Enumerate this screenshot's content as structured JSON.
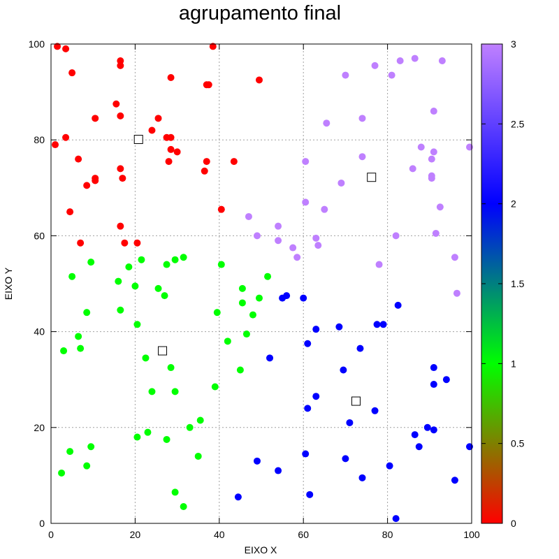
{
  "chart_data": {
    "type": "scatter",
    "title": "agrupamento final",
    "xlabel": "EIXO X",
    "ylabel": "EIXO Y",
    "xlim": [
      0,
      100
    ],
    "ylim": [
      0,
      100
    ],
    "x_ticks": [
      "0",
      "20",
      "40",
      "60",
      "80",
      "100"
    ],
    "y_ticks": [
      "0",
      "20",
      "40",
      "60",
      "80",
      "100"
    ],
    "grid": true,
    "colorbar": {
      "range": [
        0,
        3
      ],
      "ticks": [
        "0",
        "0.5",
        "1",
        "1.5",
        "2",
        "2.5",
        "3"
      ],
      "colors": [
        "#ff0000",
        "#00ff00",
        "#0000ff",
        "#bf80ff"
      ]
    },
    "series": [
      {
        "cluster": 0,
        "color": "#ff0000",
        "points": [
          [
            1.5,
            99.5
          ],
          [
            3.5,
            99
          ],
          [
            5,
            94
          ],
          [
            16.5,
            96.5
          ],
          [
            16.5,
            95.5
          ],
          [
            38.5,
            99.5
          ],
          [
            49.5,
            92.5
          ],
          [
            28.5,
            93
          ],
          [
            37,
            91.5
          ],
          [
            37.5,
            91.5
          ],
          [
            15.5,
            87.5
          ],
          [
            16.5,
            85
          ],
          [
            10.5,
            84.5
          ],
          [
            25.5,
            84.5
          ],
          [
            24,
            82
          ],
          [
            27.5,
            80.5
          ],
          [
            28.5,
            80.5
          ],
          [
            3.5,
            80.5
          ],
          [
            1,
            79
          ],
          [
            28.5,
            78
          ],
          [
            30,
            77.5
          ],
          [
            6.5,
            76
          ],
          [
            28,
            75.5
          ],
          [
            37,
            75.5
          ],
          [
            43.5,
            75.5
          ],
          [
            16.5,
            74
          ],
          [
            36.5,
            73.5
          ],
          [
            10.5,
            72
          ],
          [
            10.5,
            71.5
          ],
          [
            17,
            72
          ],
          [
            8.5,
            70.5
          ],
          [
            4.5,
            65
          ],
          [
            40.5,
            65.5
          ],
          [
            16.5,
            62
          ],
          [
            7,
            58.5
          ],
          [
            17.5,
            58.5
          ],
          [
            20.5,
            58.5
          ]
        ]
      },
      {
        "cluster": 1,
        "color": "#00ff00",
        "points": [
          [
            9.5,
            54.5
          ],
          [
            18.5,
            53.5
          ],
          [
            21.5,
            55
          ],
          [
            27.5,
            54
          ],
          [
            29.5,
            55
          ],
          [
            31.5,
            55.5
          ],
          [
            40.5,
            54
          ],
          [
            5,
            51.5
          ],
          [
            16,
            50.5
          ],
          [
            20,
            49.5
          ],
          [
            25.5,
            49
          ],
          [
            27,
            47.5
          ],
          [
            45.5,
            49
          ],
          [
            51.5,
            51.5
          ],
          [
            45.5,
            46
          ],
          [
            49.5,
            47
          ],
          [
            8.5,
            44
          ],
          [
            16.5,
            44.5
          ],
          [
            39.5,
            44
          ],
          [
            48,
            43.5
          ],
          [
            20.5,
            41.5
          ],
          [
            6.5,
            39
          ],
          [
            42,
            38
          ],
          [
            46.5,
            39.5
          ],
          [
            3,
            36
          ],
          [
            7,
            36.5
          ],
          [
            22.5,
            34.5
          ],
          [
            28.5,
            32.5
          ],
          [
            45,
            32
          ],
          [
            24,
            27.5
          ],
          [
            29.5,
            27.5
          ],
          [
            39,
            28.5
          ],
          [
            35.5,
            21.5
          ],
          [
            33,
            20
          ],
          [
            23,
            19
          ],
          [
            20.5,
            18
          ],
          [
            27.5,
            17.5
          ],
          [
            9.5,
            16
          ],
          [
            4.5,
            15
          ],
          [
            35,
            14
          ],
          [
            8.5,
            12
          ],
          [
            2.5,
            10.5
          ],
          [
            29.5,
            6.5
          ],
          [
            31.5,
            3.5
          ]
        ]
      },
      {
        "cluster": 2,
        "color": "#0000ff",
        "points": [
          [
            55,
            47
          ],
          [
            56,
            47.5
          ],
          [
            60,
            47
          ],
          [
            82.5,
            45.5
          ],
          [
            77.5,
            41.5
          ],
          [
            79,
            41.5
          ],
          [
            68.5,
            41
          ],
          [
            63,
            40.5
          ],
          [
            61,
            37.5
          ],
          [
            73.5,
            36.5
          ],
          [
            52,
            34.5
          ],
          [
            91,
            32.5
          ],
          [
            69.5,
            32
          ],
          [
            94,
            30
          ],
          [
            91,
            29
          ],
          [
            63,
            26.5
          ],
          [
            61,
            24
          ],
          [
            77,
            23.5
          ],
          [
            71,
            21
          ],
          [
            89.5,
            20
          ],
          [
            91,
            19.5
          ],
          [
            86.5,
            18.5
          ],
          [
            87.5,
            16
          ],
          [
            99.5,
            16
          ],
          [
            60.5,
            14.5
          ],
          [
            49,
            13
          ],
          [
            70,
            13.5
          ],
          [
            80.5,
            12
          ],
          [
            54,
            11
          ],
          [
            74,
            9.5
          ],
          [
            96,
            9
          ],
          [
            61.5,
            6
          ],
          [
            44.5,
            5.5
          ],
          [
            82,
            1
          ]
        ]
      },
      {
        "cluster": 3,
        "color": "#bf80ff",
        "points": [
          [
            86.5,
            97
          ],
          [
            83,
            96.5
          ],
          [
            93,
            96.5
          ],
          [
            77,
            95.5
          ],
          [
            70,
            93.5
          ],
          [
            81,
            93.5
          ],
          [
            91,
            86
          ],
          [
            65.5,
            83.5
          ],
          [
            74,
            84.5
          ],
          [
            88,
            78.5
          ],
          [
            99.5,
            78.5
          ],
          [
            91,
            77.5
          ],
          [
            90.5,
            76
          ],
          [
            74,
            76.5
          ],
          [
            60.5,
            75.5
          ],
          [
            86,
            74
          ],
          [
            90.5,
            72.5
          ],
          [
            90.5,
            72
          ],
          [
            69,
            71
          ],
          [
            60.5,
            67
          ],
          [
            65,
            65.5
          ],
          [
            92.5,
            66
          ],
          [
            47,
            64
          ],
          [
            54,
            62
          ],
          [
            91.5,
            60.5
          ],
          [
            49,
            60
          ],
          [
            82,
            60
          ],
          [
            63,
            59.5
          ],
          [
            54,
            59
          ],
          [
            63.5,
            58
          ],
          [
            57.5,
            57.5
          ],
          [
            58.5,
            55.5
          ],
          [
            96,
            55.5
          ],
          [
            78,
            54
          ],
          [
            96.5,
            48
          ]
        ]
      }
    ],
    "centroids": [
      [
        20.8,
        80.1
      ],
      [
        26.5,
        36
      ],
      [
        72.5,
        25.5
      ],
      [
        76.2,
        72.2
      ]
    ]
  }
}
